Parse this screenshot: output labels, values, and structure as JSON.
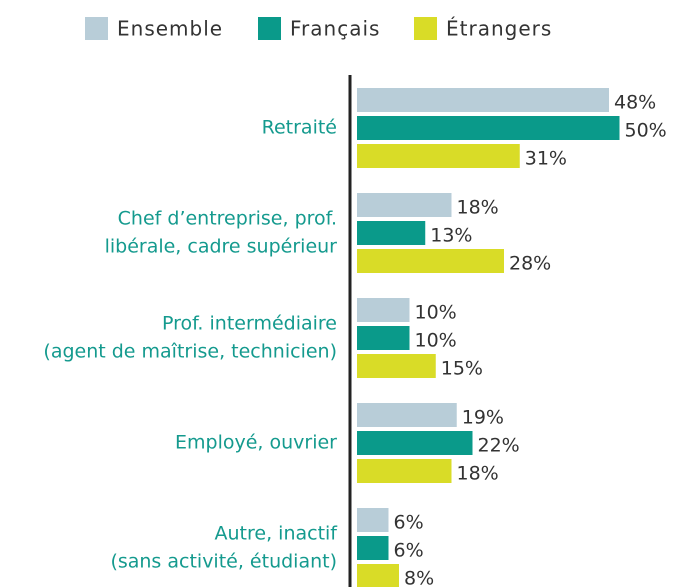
{
  "chart_data": {
    "type": "bar",
    "orientation": "horizontal",
    "categories": [
      [
        "Retraité"
      ],
      [
        "Chef d’entreprise, prof.",
        "libérale, cadre supérieur"
      ],
      [
        "Prof. intermédiaire",
        "(agent de maîtrise, technicien)"
      ],
      [
        "Employé, ouvrier"
      ],
      [
        "Autre, inactif",
        "(sans activité, étudiant)"
      ]
    ],
    "series": [
      {
        "name": "Ensemble",
        "color": "#b8cdd8",
        "values": [
          48,
          18,
          10,
          19,
          6
        ],
        "value_labels": [
          "48%",
          "18%",
          "10%",
          "19%",
          "6%"
        ]
      },
      {
        "name": "Français",
        "color": "#0a9a8a",
        "values": [
          50,
          13,
          10,
          22,
          6
        ],
        "value_labels": [
          "50%",
          "13%",
          "10%",
          "22%",
          "6%"
        ]
      },
      {
        "name": "Étrangers",
        "color": "#d9dc27",
        "values": [
          31,
          28,
          15,
          18,
          8
        ],
        "value_labels": [
          "31%",
          "28%",
          "15%",
          "18%",
          "8%"
        ]
      }
    ],
    "legend": "top"
  }
}
